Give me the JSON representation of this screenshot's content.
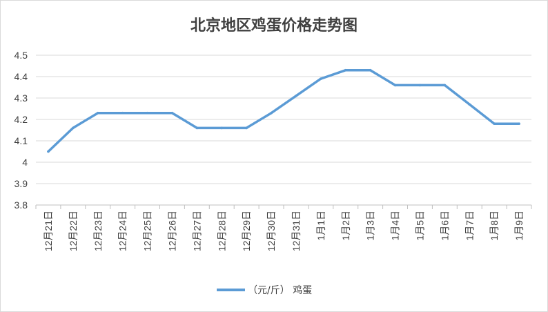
{
  "chart_data": {
    "type": "line",
    "title": "北京地区鸡蛋价格走势图",
    "xlabel": "",
    "ylabel": "",
    "categories": [
      "12月21日",
      "12月22日",
      "12月23日",
      "12月24日",
      "12月25日",
      "12月26日",
      "12月27日",
      "12月28日",
      "12月29日",
      "12月30日",
      "12月31日",
      "1月1日",
      "1月2日",
      "1月3日",
      "1月4日",
      "1月5日",
      "1月6日",
      "1月7日",
      "1月8日",
      "1月9日"
    ],
    "series": [
      {
        "name": "（元/斤）  鸡蛋",
        "values": [
          4.05,
          4.16,
          4.23,
          4.23,
          4.23,
          4.23,
          4.16,
          4.16,
          4.16,
          4.23,
          4.31,
          4.39,
          4.43,
          4.43,
          4.36,
          4.36,
          4.36,
          4.27,
          4.18,
          4.18
        ]
      }
    ],
    "ylim": [
      3.8,
      4.5
    ],
    "yticks": [
      "3.8",
      "3.9",
      "4",
      "4.1",
      "4.2",
      "4.3",
      "4.4",
      "4.5"
    ],
    "grid": true,
    "legend_position": "bottom",
    "colors": {
      "line": "#5b9bd5",
      "grid": "#d9d9d9",
      "axis": "#bfbfbf",
      "text": "#404040"
    }
  }
}
